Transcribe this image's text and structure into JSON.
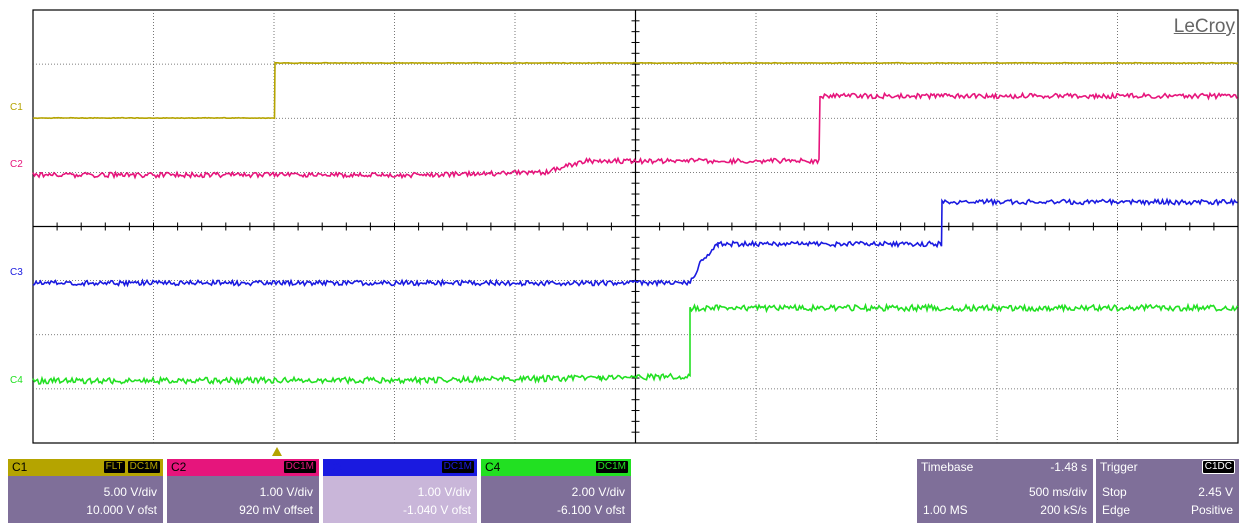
{
  "brand": "LeCroy",
  "colors": {
    "c1": "#b5a400",
    "c2": "#e6157c",
    "c3": "#1a1ae0",
    "c4": "#22e022"
  },
  "trace_labels": {
    "c1": "C1",
    "c2": "C2",
    "c3": "C3",
    "c4": "C4"
  },
  "channels": [
    {
      "name": "C1",
      "badges": [
        "FLT",
        "DC1M"
      ],
      "volts_div": "5.00 V/div",
      "offset": "10.000 V ofst"
    },
    {
      "name": "C2",
      "badges": [
        "DC1M"
      ],
      "volts_div": "1.00 V/div",
      "offset": "920 mV offset"
    },
    {
      "name": "C3",
      "badges": [
        "DC1M"
      ],
      "volts_div": "1.00 V/div",
      "offset": "-1.040 V ofst"
    },
    {
      "name": "C4",
      "badges": [
        "DC1M"
      ],
      "volts_div": "2.00 V/div",
      "offset": "-6.100 V ofst"
    }
  ],
  "timebase": {
    "label": "Timebase",
    "delay": "-1.48 s",
    "time_div": "500 ms/div",
    "samples": "1.00 MS",
    "rate": "200 kS/s"
  },
  "trigger": {
    "label": "Trigger",
    "badge": "C1DC",
    "mode": "Stop",
    "level": "2.45 V",
    "type": "Edge",
    "slope": "Positive"
  }
}
